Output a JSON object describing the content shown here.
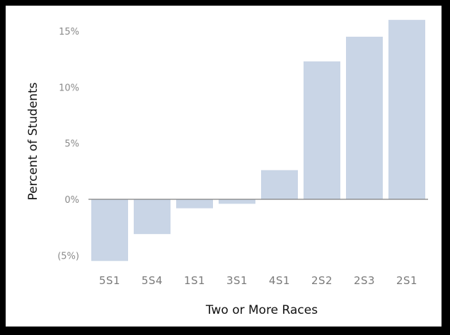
{
  "chart_data": {
    "type": "bar",
    "title": "",
    "xlabel": "Two or More Races",
    "ylabel": "Percent of Students",
    "categories": [
      "5S1",
      "5S4",
      "1S1",
      "3S1",
      "4S1",
      "2S2",
      "2S3",
      "2S1"
    ],
    "values": [
      -5.5,
      -3.1,
      -0.8,
      -0.4,
      2.6,
      12.3,
      14.5,
      16.0
    ],
    "ylim": [
      -5.5,
      16.0
    ],
    "yticks": [
      -5,
      0,
      5,
      10,
      15
    ],
    "ytick_labels": [
      "(5%)",
      "0%",
      "5%",
      "10%",
      "15%"
    ],
    "grid": false,
    "legend": "none",
    "bar_color": "#c9d5e6",
    "zero_line_color": "#7f7f7f"
  }
}
